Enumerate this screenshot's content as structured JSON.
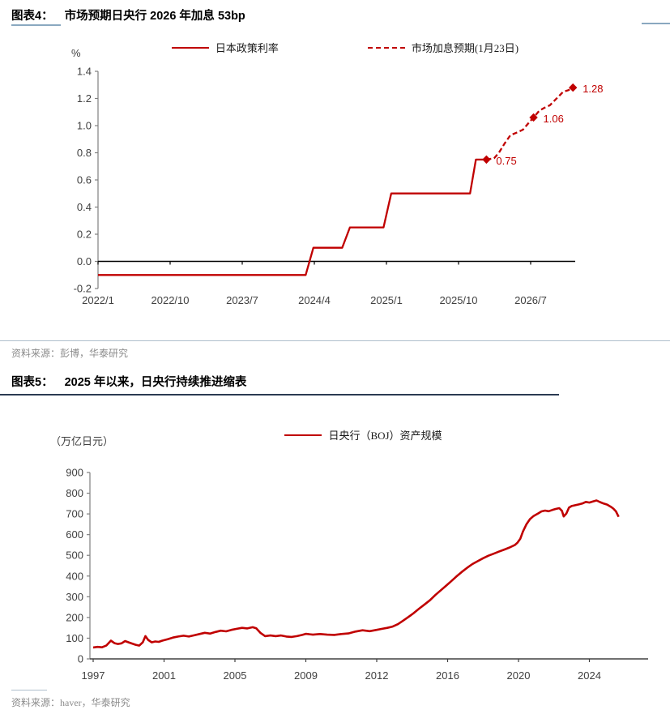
{
  "colors": {
    "red": "#C00000",
    "axis_text": "#404040",
    "source_text": "#8C8C8C",
    "rule_light": "#AEBFCC",
    "rule_dark": "#2B3A52",
    "label_underline": "#8AA8C0",
    "zero_line": "#000000"
  },
  "figure4": {
    "label": "图表4：",
    "title": "市场预期日央行 2026 年加息 53bp",
    "unit": "%",
    "legend": [
      {
        "name": "日本政策利率",
        "style": "solid"
      },
      {
        "name": "市场加息预期(1月23日)",
        "style": "dashed"
      }
    ],
    "source": "资料来源：彭博，华泰研究"
  },
  "figure5": {
    "label": "图表5：",
    "title": "2025 年以来，日央行持续推进缩表",
    "unit": "（万亿日元）",
    "legend": [
      {
        "name": "日央行（BOJ）资产规模",
        "style": "solid"
      }
    ],
    "source": "资料来源：haver，华泰研究"
  },
  "chart_data": [
    {
      "type": "line",
      "title": "市场预期日央行 2026 年加息 53bp",
      "ylabel": "%",
      "ylim": [
        -0.2,
        1.4
      ],
      "ytick_values": [
        1.4,
        1.2,
        1.0,
        0.8,
        0.6,
        0.4,
        0.2,
        0.0,
        -0.2
      ],
      "ytick_labels": [
        "1.4",
        "1.2",
        "1.0",
        "0.8",
        "0.6",
        "0.4",
        "0.2",
        "0.0",
        "-0.2"
      ],
      "xtick_years": [
        2022.0,
        2022.75,
        2023.5,
        2024.25,
        2025.0,
        2025.75,
        2026.5
      ],
      "xtick_labels": [
        "2022/1",
        "2022/10",
        "2023/7",
        "2024/4",
        "2025/1",
        "2025/10",
        "2026/7"
      ],
      "grid": false,
      "legend_position": "top",
      "series": [
        {
          "name": "日本政策利率",
          "style": "solid",
          "points": [
            [
              2022.0,
              -0.1
            ],
            [
              2024.16,
              -0.1
            ],
            [
              2024.24,
              0.1
            ],
            [
              2024.54,
              0.1
            ],
            [
              2024.62,
              0.25
            ],
            [
              2024.97,
              0.25
            ],
            [
              2025.05,
              0.5
            ],
            [
              2025.87,
              0.5
            ],
            [
              2025.93,
              0.75
            ],
            [
              2026.04,
              0.75
            ]
          ]
        },
        {
          "name": "市场加息预期(1月23日)",
          "style": "dashed",
          "points": [
            [
              2026.04,
              0.75
            ],
            [
              2026.12,
              0.76
            ],
            [
              2026.17,
              0.8
            ],
            [
              2026.23,
              0.87
            ],
            [
              2026.29,
              0.93
            ],
            [
              2026.36,
              0.95
            ],
            [
              2026.42,
              0.97
            ],
            [
              2026.48,
              1.02
            ],
            [
              2026.53,
              1.06
            ],
            [
              2026.59,
              1.11
            ],
            [
              2026.64,
              1.13
            ],
            [
              2026.7,
              1.15
            ],
            [
              2026.77,
              1.2
            ],
            [
              2026.84,
              1.25
            ],
            [
              2026.89,
              1.26
            ],
            [
              2026.94,
              1.28
            ]
          ],
          "markers": [
            {
              "x": 2026.04,
              "y": 0.75,
              "label": "0.75"
            },
            {
              "x": 2026.53,
              "y": 1.06,
              "label": "1.06"
            },
            {
              "x": 2026.94,
              "y": 1.28,
              "label": "1.28"
            }
          ]
        }
      ]
    },
    {
      "type": "line",
      "title": "2025 年以来，日央行持续推进缩表",
      "ylabel": "（万亿日元）",
      "ylim": [
        0,
        900
      ],
      "ytick_values": [
        900,
        800,
        700,
        600,
        500,
        400,
        300,
        200,
        100,
        0
      ],
      "ytick_labels": [
        "900",
        "800",
        "700",
        "600",
        "500",
        "400",
        "300",
        "200",
        "100",
        "0"
      ],
      "xtick_years": [
        1997,
        2001,
        2005,
        2009,
        2012,
        2016,
        2020,
        2024
      ],
      "xtick_labels": [
        "1997",
        "2001",
        "2005",
        "2009",
        "2012",
        "2016",
        "2020",
        "2024"
      ],
      "grid": false,
      "legend_position": "top",
      "series": [
        {
          "name": "日央行（BOJ）资产规模",
          "style": "solid",
          "points": [
            [
              1997.0,
              55
            ],
            [
              1997.25,
              58
            ],
            [
              1997.5,
              56
            ],
            [
              1997.75,
              65
            ],
            [
              1998.0,
              88
            ],
            [
              1998.2,
              76
            ],
            [
              1998.4,
              72
            ],
            [
              1998.6,
              75
            ],
            [
              1998.8,
              86
            ],
            [
              1999.0,
              80
            ],
            [
              1999.2,
              74
            ],
            [
              1999.4,
              68
            ],
            [
              1999.6,
              64
            ],
            [
              1999.8,
              80
            ],
            [
              1999.95,
              110
            ],
            [
              2000.1,
              92
            ],
            [
              2000.3,
              80
            ],
            [
              2000.5,
              84
            ],
            [
              2000.7,
              82
            ],
            [
              2000.9,
              88
            ],
            [
              2001.2,
              95
            ],
            [
              2001.5,
              103
            ],
            [
              2001.8,
              108
            ],
            [
              2002.1,
              112
            ],
            [
              2002.4,
              108
            ],
            [
              2002.7,
              114
            ],
            [
              2003.0,
              120
            ],
            [
              2003.3,
              126
            ],
            [
              2003.6,
              122
            ],
            [
              2003.9,
              130
            ],
            [
              2004.2,
              136
            ],
            [
              2004.5,
              133
            ],
            [
              2004.8,
              140
            ],
            [
              2005.1,
              145
            ],
            [
              2005.4,
              150
            ],
            [
              2005.7,
              147
            ],
            [
              2006.0,
              153
            ],
            [
              2006.2,
              148
            ],
            [
              2006.45,
              125
            ],
            [
              2006.7,
              110
            ],
            [
              2007.0,
              113
            ],
            [
              2007.3,
              110
            ],
            [
              2007.6,
              113
            ],
            [
              2007.9,
              108
            ],
            [
              2008.2,
              106
            ],
            [
              2008.5,
              110
            ],
            [
              2008.8,
              116
            ],
            [
              2009.0,
              121
            ],
            [
              2009.3,
              117
            ],
            [
              2009.6,
              120
            ],
            [
              2009.9,
              117
            ],
            [
              2010.2,
              116
            ],
            [
              2010.5,
              120
            ],
            [
              2010.8,
              123
            ],
            [
              2011.1,
              132
            ],
            [
              2011.4,
              138
            ],
            [
              2011.7,
              134
            ],
            [
              2012.0,
              140
            ],
            [
              2012.3,
              145
            ],
            [
              2012.6,
              150
            ],
            [
              2012.9,
              156
            ],
            [
              2013.2,
              168
            ],
            [
              2013.5,
              185
            ],
            [
              2013.8,
              203
            ],
            [
              2014.1,
              222
            ],
            [
              2014.4,
              243
            ],
            [
              2014.7,
              263
            ],
            [
              2015.0,
              283
            ],
            [
              2015.3,
              308
            ],
            [
              2015.6,
              330
            ],
            [
              2015.9,
              352
            ],
            [
              2016.2,
              375
            ],
            [
              2016.5,
              398
            ],
            [
              2016.8,
              420
            ],
            [
              2017.1,
              440
            ],
            [
              2017.4,
              458
            ],
            [
              2017.7,
              472
            ],
            [
              2018.0,
              486
            ],
            [
              2018.3,
              498
            ],
            [
              2018.6,
              508
            ],
            [
              2018.9,
              518
            ],
            [
              2019.2,
              528
            ],
            [
              2019.5,
              538
            ],
            [
              2019.8,
              550
            ],
            [
              2019.95,
              562
            ],
            [
              2020.1,
              580
            ],
            [
              2020.25,
              615
            ],
            [
              2020.45,
              650
            ],
            [
              2020.65,
              675
            ],
            [
              2020.85,
              690
            ],
            [
              2021.1,
              702
            ],
            [
              2021.3,
              712
            ],
            [
              2021.5,
              716
            ],
            [
              2021.7,
              713
            ],
            [
              2021.9,
              719
            ],
            [
              2022.1,
              724
            ],
            [
              2022.3,
              728
            ],
            [
              2022.45,
              715
            ],
            [
              2022.55,
              688
            ],
            [
              2022.7,
              702
            ],
            [
              2022.85,
              730
            ],
            [
              2023.0,
              738
            ],
            [
              2023.2,
              742
            ],
            [
              2023.4,
              746
            ],
            [
              2023.6,
              750
            ],
            [
              2023.8,
              758
            ],
            [
              2024.0,
              755
            ],
            [
              2024.2,
              760
            ],
            [
              2024.4,
              765
            ],
            [
              2024.6,
              757
            ],
            [
              2024.8,
              750
            ],
            [
              2025.0,
              745
            ],
            [
              2025.2,
              735
            ],
            [
              2025.35,
              726
            ],
            [
              2025.5,
              712
            ],
            [
              2025.65,
              686
            ]
          ]
        }
      ]
    }
  ]
}
